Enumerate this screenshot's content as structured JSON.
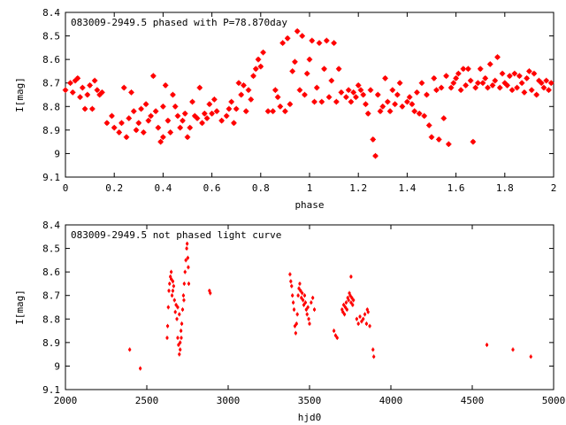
{
  "chart_data": [
    {
      "type": "scatter",
      "title": "083009-2949.5 phased with P=78.870day",
      "xlabel": "phase",
      "ylabel": "I[mag]",
      "xlim": [
        0,
        2
      ],
      "ylim": [
        8.4,
        9.1
      ],
      "y_inverted": true,
      "xticks": [
        "0",
        "0.2",
        "0.4",
        "0.6",
        "0.8",
        "1",
        "1.2",
        "1.4",
        "1.6",
        "1.8",
        "2"
      ],
      "yticks": [
        "8.4",
        "8.5",
        "8.6",
        "8.7",
        "8.8",
        "8.9",
        "9",
        "9.1"
      ],
      "grid": false,
      "marker_color": "#ff0000",
      "points": [
        [
          0.0,
          8.73
        ],
        [
          0.02,
          8.7
        ],
        [
          0.03,
          8.74
        ],
        [
          0.04,
          8.69
        ],
        [
          0.05,
          8.68
        ],
        [
          0.06,
          8.76
        ],
        [
          0.07,
          8.72
        ],
        [
          0.08,
          8.81
        ],
        [
          0.09,
          8.75
        ],
        [
          0.1,
          8.71
        ],
        [
          0.11,
          8.81
        ],
        [
          0.12,
          8.69
        ],
        [
          0.13,
          8.73
        ],
        [
          0.14,
          8.75
        ],
        [
          0.15,
          8.74
        ],
        [
          0.17,
          8.87
        ],
        [
          0.19,
          8.84
        ],
        [
          0.2,
          8.89
        ],
        [
          0.22,
          8.91
        ],
        [
          0.23,
          8.87
        ],
        [
          0.24,
          8.72
        ],
        [
          0.25,
          8.93
        ],
        [
          0.26,
          8.85
        ],
        [
          0.27,
          8.74
        ],
        [
          0.28,
          8.82
        ],
        [
          0.29,
          8.9
        ],
        [
          0.3,
          8.87
        ],
        [
          0.31,
          8.81
        ],
        [
          0.32,
          8.91
        ],
        [
          0.33,
          8.79
        ],
        [
          0.34,
          8.86
        ],
        [
          0.35,
          8.84
        ],
        [
          0.36,
          8.67
        ],
        [
          0.37,
          8.82
        ],
        [
          0.38,
          8.89
        ],
        [
          0.39,
          8.95
        ],
        [
          0.4,
          8.93
        ],
        [
          0.4,
          8.8
        ],
        [
          0.41,
          8.71
        ],
        [
          0.42,
          8.86
        ],
        [
          0.43,
          8.91
        ],
        [
          0.44,
          8.75
        ],
        [
          0.45,
          8.8
        ],
        [
          0.46,
          8.84
        ],
        [
          0.47,
          8.89
        ],
        [
          0.48,
          8.86
        ],
        [
          0.49,
          8.83
        ],
        [
          0.5,
          8.93
        ],
        [
          0.51,
          8.89
        ],
        [
          0.52,
          8.78
        ],
        [
          0.53,
          8.84
        ],
        [
          0.54,
          8.85
        ],
        [
          0.55,
          8.72
        ],
        [
          0.56,
          8.87
        ],
        [
          0.57,
          8.83
        ],
        [
          0.58,
          8.85
        ],
        [
          0.59,
          8.79
        ],
        [
          0.6,
          8.83
        ],
        [
          0.61,
          8.77
        ],
        [
          0.62,
          8.82
        ],
        [
          0.64,
          8.86
        ],
        [
          0.66,
          8.84
        ],
        [
          0.67,
          8.81
        ],
        [
          0.68,
          8.78
        ],
        [
          0.69,
          8.87
        ],
        [
          0.7,
          8.81
        ],
        [
          0.71,
          8.7
        ],
        [
          0.72,
          8.75
        ],
        [
          0.73,
          8.71
        ],
        [
          0.74,
          8.82
        ],
        [
          0.75,
          8.73
        ],
        [
          0.76,
          8.77
        ],
        [
          0.77,
          8.67
        ],
        [
          0.78,
          8.64
        ],
        [
          0.79,
          8.6
        ],
        [
          0.8,
          8.63
        ],
        [
          0.81,
          8.57
        ],
        [
          0.83,
          8.82
        ],
        [
          0.85,
          8.82
        ],
        [
          0.86,
          8.73
        ],
        [
          0.87,
          8.76
        ],
        [
          0.88,
          8.8
        ],
        [
          0.89,
          8.53
        ],
        [
          0.9,
          8.82
        ],
        [
          0.91,
          8.51
        ],
        [
          0.92,
          8.79
        ],
        [
          0.93,
          8.65
        ],
        [
          0.94,
          8.61
        ],
        [
          0.95,
          8.48
        ],
        [
          0.96,
          8.73
        ],
        [
          0.97,
          8.5
        ],
        [
          0.98,
          8.75
        ],
        [
          0.99,
          8.66
        ],
        [
          1.0,
          8.6
        ],
        [
          1.01,
          8.52
        ],
        [
          1.02,
          8.78
        ],
        [
          1.03,
          8.72
        ],
        [
          1.04,
          8.53
        ],
        [
          1.05,
          8.78
        ],
        [
          1.06,
          8.64
        ],
        [
          1.07,
          8.52
        ],
        [
          1.08,
          8.76
        ],
        [
          1.09,
          8.69
        ],
        [
          1.1,
          8.53
        ],
        [
          1.11,
          8.78
        ],
        [
          1.12,
          8.64
        ],
        [
          1.13,
          8.74
        ],
        [
          1.15,
          8.76
        ],
        [
          1.16,
          8.73
        ],
        [
          1.17,
          8.78
        ],
        [
          1.18,
          8.74
        ],
        [
          1.19,
          8.76
        ],
        [
          1.2,
          8.71
        ],
        [
          1.21,
          8.73
        ],
        [
          1.22,
          8.75
        ],
        [
          1.23,
          8.79
        ],
        [
          1.24,
          8.83
        ],
        [
          1.25,
          8.73
        ],
        [
          1.26,
          8.94
        ],
        [
          1.27,
          9.01
        ],
        [
          1.28,
          8.75
        ],
        [
          1.29,
          8.82
        ],
        [
          1.3,
          8.8
        ],
        [
          1.31,
          8.68
        ],
        [
          1.32,
          8.78
        ],
        [
          1.33,
          8.82
        ],
        [
          1.34,
          8.73
        ],
        [
          1.35,
          8.79
        ],
        [
          1.36,
          8.75
        ],
        [
          1.37,
          8.7
        ],
        [
          1.38,
          8.8
        ],
        [
          1.4,
          8.78
        ],
        [
          1.41,
          8.76
        ],
        [
          1.42,
          8.79
        ],
        [
          1.43,
          8.82
        ],
        [
          1.44,
          8.74
        ],
        [
          1.45,
          8.83
        ],
        [
          1.46,
          8.7
        ],
        [
          1.47,
          8.84
        ],
        [
          1.48,
          8.75
        ],
        [
          1.49,
          8.88
        ],
        [
          1.5,
          8.93
        ],
        [
          1.51,
          8.68
        ],
        [
          1.52,
          8.73
        ],
        [
          1.53,
          8.94
        ],
        [
          1.54,
          8.72
        ],
        [
          1.55,
          8.85
        ],
        [
          1.56,
          8.67
        ],
        [
          1.57,
          8.96
        ],
        [
          1.58,
          8.72
        ],
        [
          1.59,
          8.7
        ],
        [
          1.6,
          8.68
        ],
        [
          1.61,
          8.66
        ],
        [
          1.62,
          8.73
        ],
        [
          1.63,
          8.64
        ],
        [
          1.64,
          8.71
        ],
        [
          1.65,
          8.64
        ],
        [
          1.66,
          8.69
        ],
        [
          1.67,
          8.95
        ],
        [
          1.68,
          8.72
        ],
        [
          1.69,
          8.7
        ],
        [
          1.7,
          8.64
        ],
        [
          1.71,
          8.7
        ],
        [
          1.72,
          8.68
        ],
        [
          1.73,
          8.72
        ],
        [
          1.74,
          8.62
        ],
        [
          1.75,
          8.71
        ],
        [
          1.76,
          8.69
        ],
        [
          1.77,
          8.59
        ],
        [
          1.78,
          8.72
        ],
        [
          1.79,
          8.66
        ],
        [
          1.8,
          8.7
        ],
        [
          1.81,
          8.71
        ],
        [
          1.82,
          8.67
        ],
        [
          1.83,
          8.73
        ],
        [
          1.84,
          8.66
        ],
        [
          1.85,
          8.72
        ],
        [
          1.86,
          8.67
        ],
        [
          1.87,
          8.7
        ],
        [
          1.88,
          8.74
        ],
        [
          1.89,
          8.68
        ],
        [
          1.9,
          8.65
        ],
        [
          1.91,
          8.73
        ],
        [
          1.92,
          8.66
        ],
        [
          1.93,
          8.75
        ],
        [
          1.94,
          8.69
        ],
        [
          1.95,
          8.7
        ],
        [
          1.96,
          8.72
        ],
        [
          1.97,
          8.69
        ],
        [
          1.98,
          8.73
        ],
        [
          1.99,
          8.7
        ]
      ]
    },
    {
      "type": "scatter",
      "title": "083009-2949.5 not phased light curve",
      "xlabel": "hjd0",
      "ylabel": "I[mag]",
      "xlim": [
        2000,
        5000
      ],
      "ylim": [
        8.4,
        9.1
      ],
      "y_inverted": true,
      "xticks": [
        "2000",
        "2500",
        "3000",
        "3500",
        "4000",
        "4500",
        "5000"
      ],
      "yticks": [
        "8.4",
        "8.5",
        "8.6",
        "8.7",
        "8.8",
        "8.9",
        "9",
        "9.1"
      ],
      "grid": false,
      "marker_color": "#ff0000",
      "points": [
        [
          2395,
          8.93
        ],
        [
          2460,
          9.01
        ],
        [
          2625,
          8.88
        ],
        [
          2628,
          8.83
        ],
        [
          2632,
          8.75
        ],
        [
          2636,
          8.68
        ],
        [
          2640,
          8.65
        ],
        [
          2645,
          8.62
        ],
        [
          2650,
          8.6
        ],
        [
          2655,
          8.7
        ],
        [
          2660,
          8.64
        ],
        [
          2665,
          8.66
        ],
        [
          2670,
          8.72
        ],
        [
          2675,
          8.77
        ],
        [
          2680,
          8.74
        ],
        [
          2685,
          8.8
        ],
        [
          2690,
          8.88
        ],
        [
          2695,
          8.91
        ],
        [
          2700,
          8.95
        ],
        [
          2705,
          8.9
        ],
        [
          2710,
          8.85
        ],
        [
          2715,
          8.82
        ],
        [
          2720,
          8.76
        ],
        [
          2725,
          8.7
        ],
        [
          2730,
          8.65
        ],
        [
          2735,
          8.6
        ],
        [
          2740,
          8.55
        ],
        [
          2745,
          8.5
        ],
        [
          2748,
          8.48
        ],
        [
          2752,
          8.54
        ],
        [
          2755,
          8.58
        ],
        [
          2758,
          8.65
        ],
        [
          2650,
          8.63
        ],
        [
          2660,
          8.68
        ],
        [
          2690,
          8.75
        ],
        [
          2700,
          8.78
        ],
        [
          2705,
          8.93
        ],
        [
          2712,
          8.88
        ],
        [
          2728,
          8.72
        ],
        [
          2885,
          8.68
        ],
        [
          2890,
          8.69
        ],
        [
          3380,
          8.61
        ],
        [
          3385,
          8.64
        ],
        [
          3390,
          8.66
        ],
        [
          3395,
          8.7
        ],
        [
          3400,
          8.73
        ],
        [
          3405,
          8.76
        ],
        [
          3410,
          8.83
        ],
        [
          3415,
          8.86
        ],
        [
          3420,
          8.82
        ],
        [
          3425,
          8.78
        ],
        [
          3430,
          8.7
        ],
        [
          3435,
          8.67
        ],
        [
          3440,
          8.65
        ],
        [
          3445,
          8.68
        ],
        [
          3450,
          8.71
        ],
        [
          3455,
          8.69
        ],
        [
          3460,
          8.72
        ],
        [
          3465,
          8.74
        ],
        [
          3470,
          8.7
        ],
        [
          3475,
          8.73
        ],
        [
          3480,
          8.76
        ],
        [
          3485,
          8.78
        ],
        [
          3490,
          8.75
        ],
        [
          3495,
          8.8
        ],
        [
          3500,
          8.82
        ],
        [
          3510,
          8.73
        ],
        [
          3520,
          8.71
        ],
        [
          3530,
          8.76
        ],
        [
          3650,
          8.85
        ],
        [
          3660,
          8.87
        ],
        [
          3670,
          8.88
        ],
        [
          3700,
          8.76
        ],
        [
          3705,
          8.77
        ],
        [
          3710,
          8.74
        ],
        [
          3715,
          8.78
        ],
        [
          3720,
          8.75
        ],
        [
          3725,
          8.73
        ],
        [
          3730,
          8.76
        ],
        [
          3735,
          8.71
        ],
        [
          3740,
          8.72
        ],
        [
          3745,
          8.69
        ],
        [
          3750,
          8.7
        ],
        [
          3755,
          8.73
        ],
        [
          3760,
          8.71
        ],
        [
          3765,
          8.74
        ],
        [
          3770,
          8.72
        ],
        [
          3755,
          8.62
        ],
        [
          3790,
          8.8
        ],
        [
          3800,
          8.82
        ],
        [
          3810,
          8.79
        ],
        [
          3820,
          8.81
        ],
        [
          3830,
          8.8
        ],
        [
          3840,
          8.78
        ],
        [
          3850,
          8.82
        ],
        [
          3855,
          8.76
        ],
        [
          3860,
          8.77
        ],
        [
          3870,
          8.83
        ],
        [
          3890,
          8.93
        ],
        [
          3895,
          8.96
        ],
        [
          4590,
          8.91
        ],
        [
          4750,
          8.93
        ],
        [
          4860,
          8.96
        ]
      ]
    }
  ]
}
